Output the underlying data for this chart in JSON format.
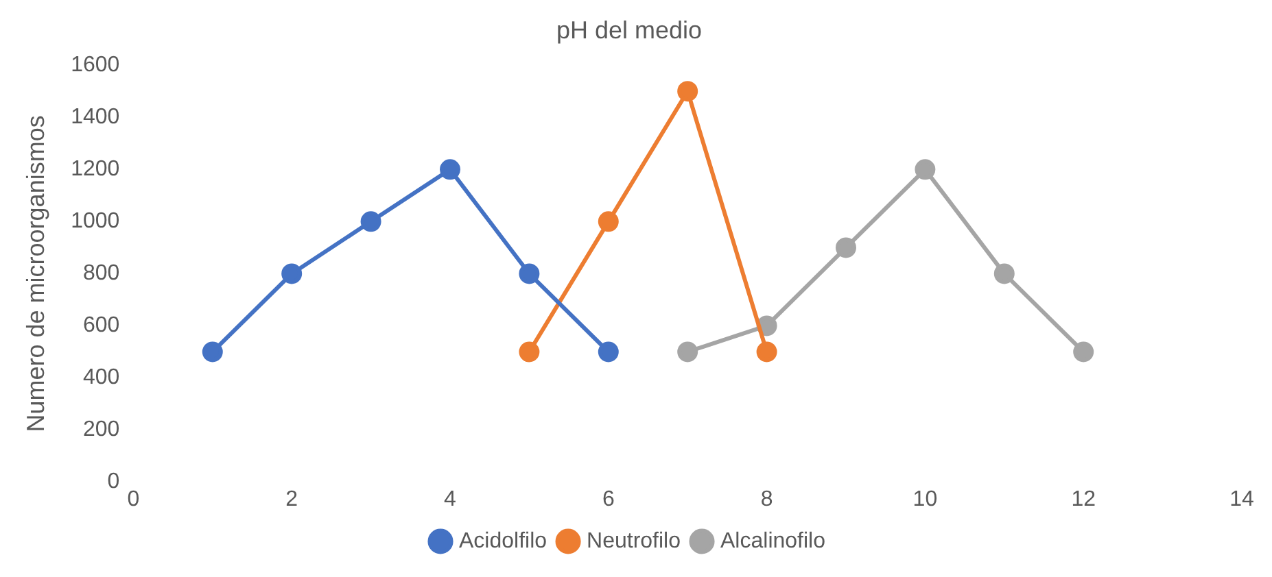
{
  "chart_data": {
    "type": "line",
    "title": "pH del medio",
    "ylabel": "Numero de microorganismos",
    "xlim": [
      0,
      14
    ],
    "xticks": [
      0,
      2,
      4,
      6,
      8,
      10,
      12,
      14
    ],
    "ylim": [
      0,
      1600
    ],
    "yticks": [
      0,
      200,
      400,
      600,
      800,
      1000,
      1200,
      1400,
      1600
    ],
    "grid": false,
    "legend": "bottom",
    "marker": "circle",
    "line_style": "solid",
    "series": [
      {
        "name": "Acidolfilo",
        "color": "#4472c4",
        "x": [
          1,
          2,
          3,
          4,
          5,
          6
        ],
        "values": [
          500,
          800,
          1000,
          1200,
          800,
          500
        ]
      },
      {
        "name": "Neutrofilo",
        "color": "#ed7d31",
        "x": [
          5,
          6,
          7,
          8
        ],
        "values": [
          500,
          1000,
          1500,
          500
        ]
      },
      {
        "name": "Alcalinofilo",
        "color": "#a5a5a5",
        "x": [
          7,
          8,
          9,
          10,
          11,
          12
        ],
        "values": [
          500,
          600,
          900,
          1200,
          800,
          500
        ]
      }
    ]
  }
}
